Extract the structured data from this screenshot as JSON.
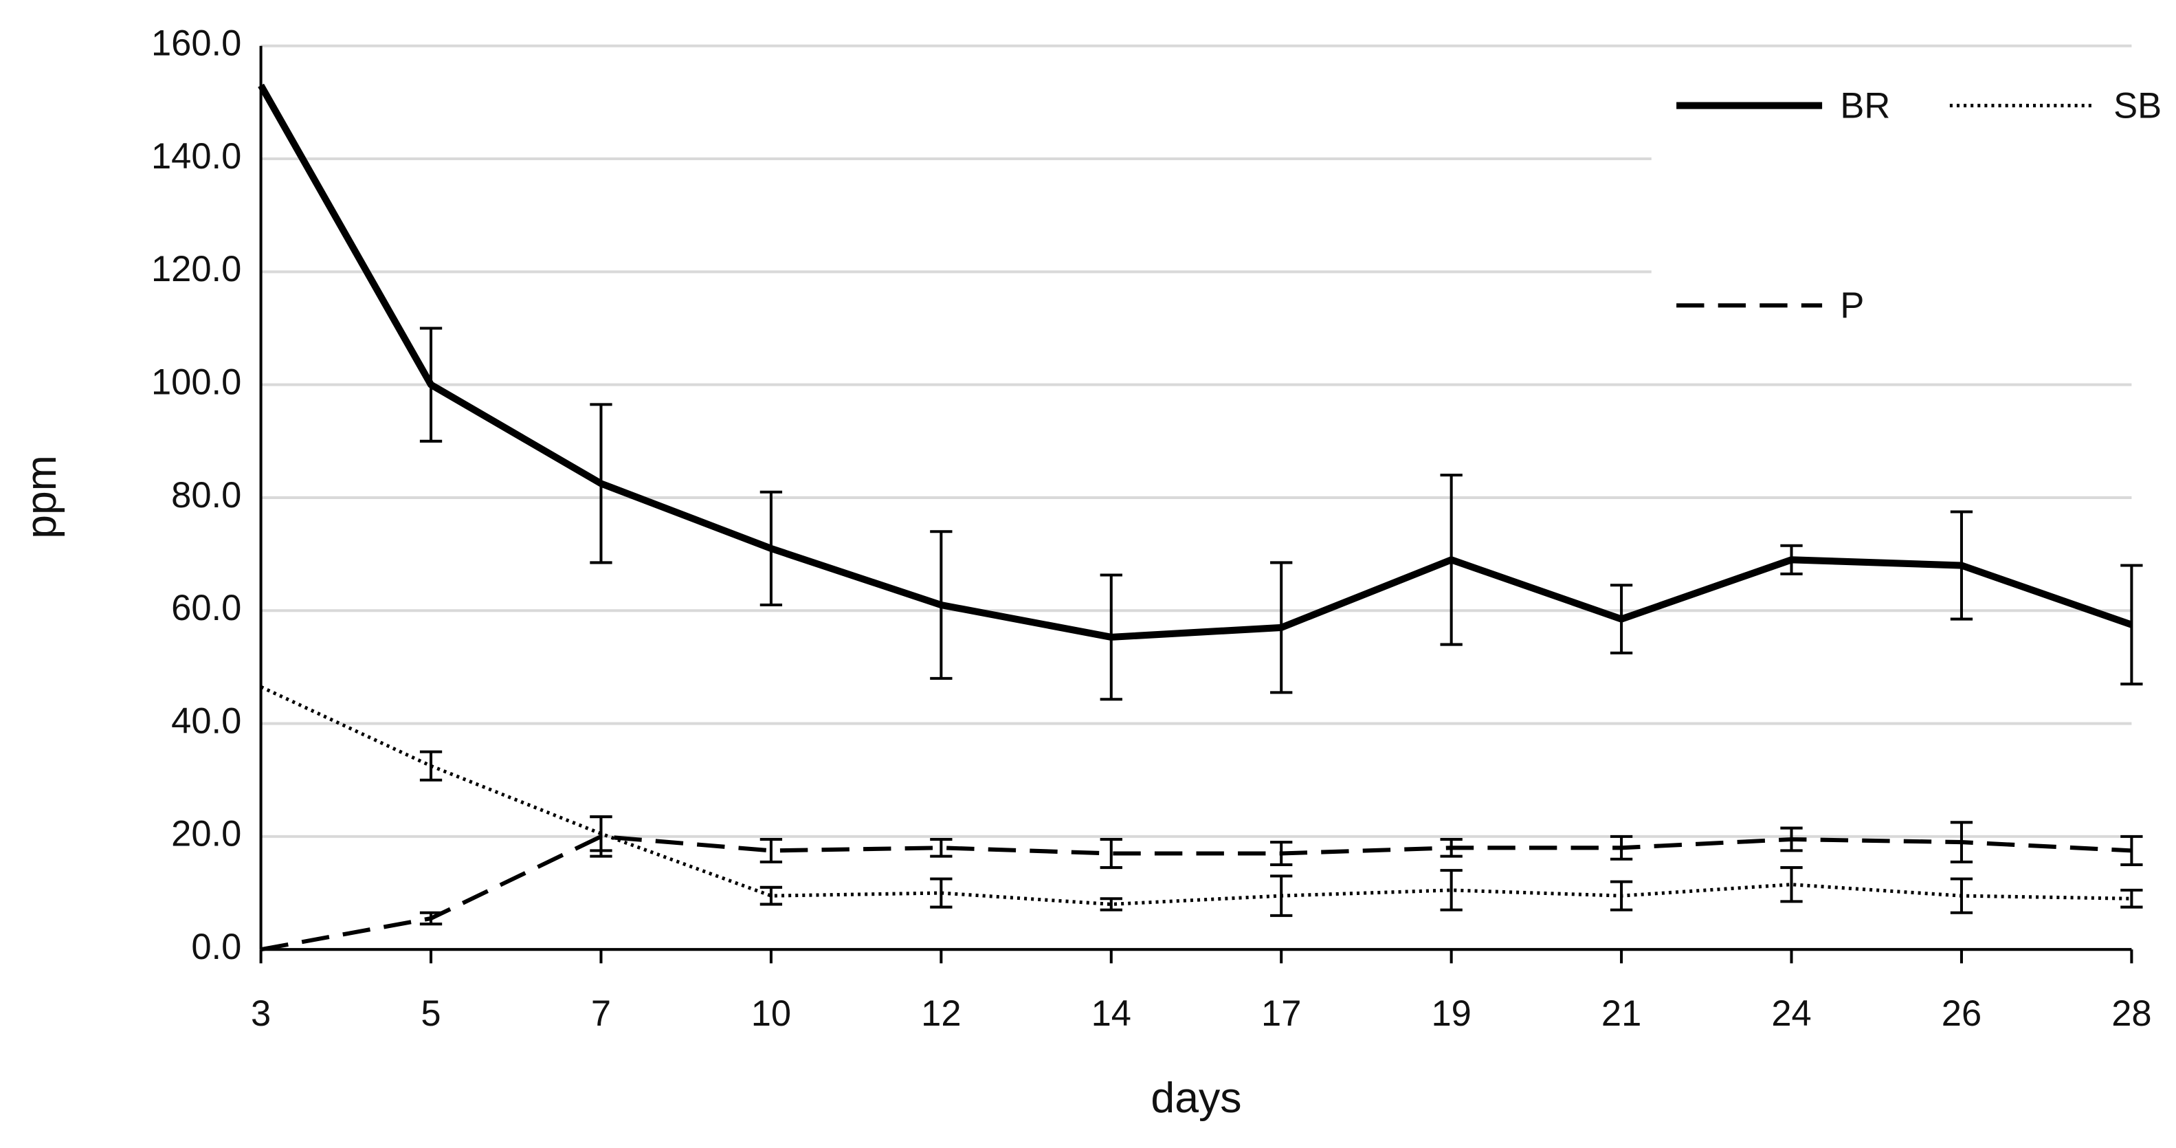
{
  "chart_data": {
    "type": "line",
    "x_label": "days",
    "y_label": "ppm",
    "categories": [
      "3",
      "5",
      "7",
      "10",
      "12",
      "14",
      "17",
      "19",
      "21",
      "24",
      "26",
      "28"
    ],
    "ylim": [
      0,
      160
    ],
    "yticks": [
      {
        "value": 0,
        "label": "0.0"
      },
      {
        "value": 20,
        "label": "20.0"
      },
      {
        "value": 40,
        "label": "40.0"
      },
      {
        "value": 60,
        "label": "60.0"
      },
      {
        "value": 80,
        "label": "80.0"
      },
      {
        "value": 100,
        "label": "100.0"
      },
      {
        "value": 120,
        "label": "120.0"
      },
      {
        "value": 140,
        "label": "140.0"
      },
      {
        "value": 160,
        "label": "160.0"
      }
    ],
    "grid": true,
    "legend": "upper right",
    "series": [
      {
        "name": "BR",
        "color": "#000000",
        "dash": "solid",
        "values": [
          153,
          100,
          82.5,
          71,
          61,
          55.3,
          57,
          69,
          58.5,
          69,
          68,
          57.5
        ],
        "errors": [
          null,
          10,
          14,
          10,
          13,
          11,
          11.5,
          15,
          6,
          2.5,
          9.5,
          10.5
        ]
      },
      {
        "name": "SB",
        "color": "#000000",
        "dash": "dotted",
        "values": [
          46.5,
          32.5,
          20.5,
          9.5,
          10,
          8,
          9.5,
          10.5,
          9.5,
          11.5,
          9.5,
          9
        ],
        "errors": [
          null,
          2.5,
          3,
          1.5,
          2.5,
          1,
          3.5,
          3.5,
          2.5,
          3,
          3,
          1.5
        ]
      },
      {
        "name": "P",
        "color": "#000000",
        "dash": "dashed",
        "values": [
          0,
          5.5,
          20,
          17.5,
          18,
          17,
          17,
          18,
          18,
          19.5,
          19,
          17.5
        ],
        "errors": [
          null,
          1,
          3.5,
          2,
          1.5,
          2.5,
          2,
          1.5,
          2,
          2,
          3.5,
          2.5
        ]
      }
    ]
  }
}
